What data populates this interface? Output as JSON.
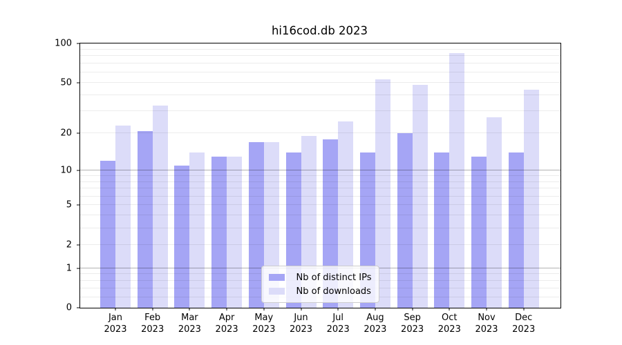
{
  "chart_data": {
    "type": "bar",
    "title": "hi16cod.db 2023",
    "categories": [
      "Jan",
      "Feb",
      "Mar",
      "Apr",
      "May",
      "Jun",
      "Jul",
      "Aug",
      "Sep",
      "Oct",
      "Nov",
      "Dec"
    ],
    "year_label": "2023",
    "series": [
      {
        "name": "Nb of distinct IPs",
        "color": "#a5a5f5",
        "values": [
          12,
          21,
          11,
          13,
          17,
          14,
          18,
          14,
          20,
          14,
          13,
          14
        ]
      },
      {
        "name": "Nb of downloads",
        "color": "#dcdcf9",
        "values": [
          23,
          33,
          14,
          13,
          17,
          19,
          25,
          53,
          48,
          84,
          27,
          44
        ]
      }
    ],
    "scale": "log1p",
    "ylim": [
      0,
      100
    ],
    "y_ticks": [
      0,
      1,
      2,
      5,
      10,
      20,
      50,
      100
    ],
    "grid": {
      "major": [
        1,
        10
      ],
      "minor": [
        0.2,
        0.4,
        0.6,
        0.8,
        2,
        3,
        4,
        5,
        6,
        7,
        8,
        9,
        20,
        30,
        40,
        50,
        60,
        70,
        80,
        90
      ]
    },
    "legend": {
      "position": "lower center"
    },
    "axis_color": "#000000",
    "grid_major_color": "rgba(0,0,0,0.30)",
    "grid_minor_color": "rgba(0,0,0,0.075)"
  }
}
